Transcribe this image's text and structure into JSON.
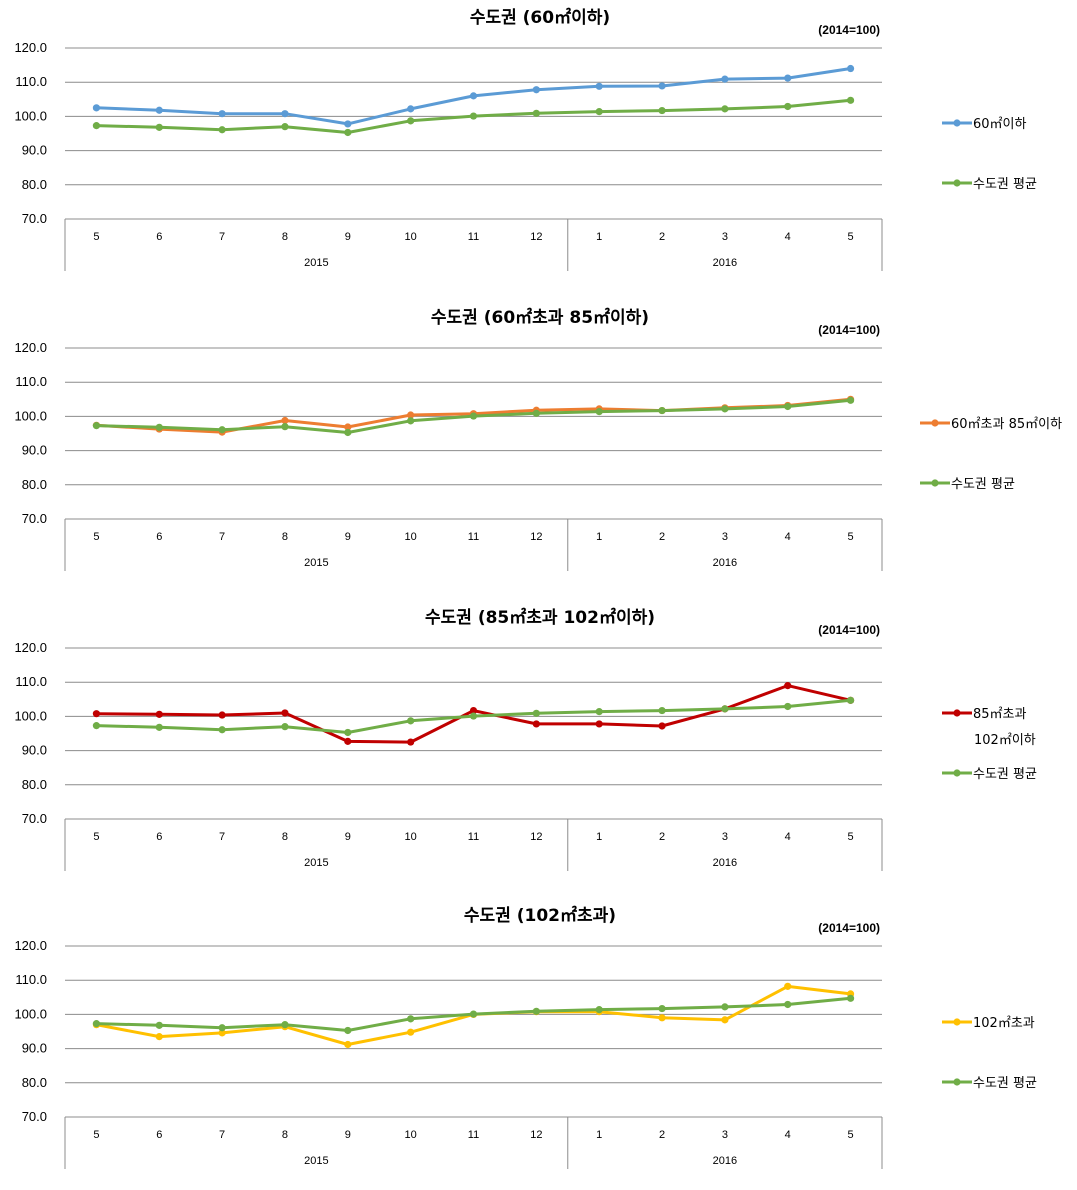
{
  "chart_data": [
    {
      "type": "line",
      "title": "수도권 (60㎡이하)",
      "base_note": "(2014=100)",
      "ylim": [
        70,
        120
      ],
      "yticks": [
        "120.0",
        "110.0",
        "100.0",
        "90.0",
        "80.0",
        "70.0"
      ],
      "categories": [
        "5",
        "6",
        "7",
        "8",
        "9",
        "10",
        "11",
        "12",
        "1",
        "2",
        "3",
        "4",
        "5"
      ],
      "year_groups": [
        {
          "label": "2015",
          "count": 8
        },
        {
          "label": "2016",
          "count": 5
        }
      ],
      "grid": true,
      "legend_position": "right",
      "series": [
        {
          "name": "60㎡이하",
          "color": "#5b9bd5",
          "values": [
            102.5,
            101.8,
            100.8,
            100.8,
            97.8,
            102.2,
            106.0,
            107.8,
            108.8,
            108.9,
            110.9,
            111.2,
            114.0
          ]
        },
        {
          "name": "수도권 평균",
          "color": "#70ad47",
          "values": [
            97.3,
            96.8,
            96.1,
            97.0,
            95.3,
            98.7,
            100.1,
            100.9,
            101.4,
            101.7,
            102.2,
            102.9,
            104.7
          ]
        }
      ]
    },
    {
      "type": "line",
      "title": "수도권 (60㎡초과 85㎡이하)",
      "base_note": "(2014=100)",
      "ylim": [
        70,
        120
      ],
      "yticks": [
        "120.0",
        "110.0",
        "100.0",
        "90.0",
        "80.0",
        "70.0"
      ],
      "categories": [
        "5",
        "6",
        "7",
        "8",
        "9",
        "10",
        "11",
        "12",
        "1",
        "2",
        "3",
        "4",
        "5"
      ],
      "year_groups": [
        {
          "label": "2015",
          "count": 8
        },
        {
          "label": "2016",
          "count": 5
        }
      ],
      "grid": true,
      "legend_position": "right",
      "series": [
        {
          "name": "60㎡초과 85㎡이하",
          "color": "#ed7d31",
          "values": [
            97.4,
            96.3,
            95.4,
            98.8,
            96.9,
            100.4,
            100.8,
            101.8,
            102.2,
            101.7,
            102.5,
            103.2,
            105.0
          ]
        },
        {
          "name": "수도권 평균",
          "color": "#70ad47",
          "values": [
            97.3,
            96.8,
            96.1,
            97.0,
            95.3,
            98.7,
            100.1,
            100.9,
            101.4,
            101.7,
            102.2,
            102.9,
            104.7
          ]
        }
      ]
    },
    {
      "type": "line",
      "title": "수도권 (85㎡초과 102㎡이하)",
      "base_note": "(2014=100)",
      "ylim": [
        70,
        120
      ],
      "yticks": [
        "120.0",
        "110.0",
        "100.0",
        "90.0",
        "80.0",
        "70.0"
      ],
      "categories": [
        "5",
        "6",
        "7",
        "8",
        "9",
        "10",
        "11",
        "12",
        "1",
        "2",
        "3",
        "4",
        "5"
      ],
      "year_groups": [
        {
          "label": "2015",
          "count": 8
        },
        {
          "label": "2016",
          "count": 5
        }
      ],
      "grid": true,
      "legend_position": "right",
      "series": [
        {
          "name": "85㎡초과 102㎡이하",
          "legend_lines": [
            "85㎡초과",
            "102㎡이하"
          ],
          "color": "#c00000",
          "values": [
            100.8,
            100.6,
            100.4,
            101.0,
            92.7,
            92.5,
            101.7,
            97.8,
            97.8,
            97.2,
            102.2,
            109.0,
            104.7
          ]
        },
        {
          "name": "수도권 평균",
          "color": "#70ad47",
          "values": [
            97.3,
            96.8,
            96.1,
            97.0,
            95.3,
            98.7,
            100.1,
            100.9,
            101.4,
            101.7,
            102.2,
            102.9,
            104.7
          ]
        }
      ]
    },
    {
      "type": "line",
      "title": "수도권 (102㎡초과)",
      "base_note": "(2014=100)",
      "ylim": [
        70,
        120
      ],
      "yticks": [
        "120.0",
        "110.0",
        "100.0",
        "90.0",
        "80.0",
        "70.0"
      ],
      "categories": [
        "5",
        "6",
        "7",
        "8",
        "9",
        "10",
        "11",
        "12",
        "1",
        "2",
        "3",
        "4",
        "5"
      ],
      "year_groups": [
        {
          "label": "2015",
          "count": 8
        },
        {
          "label": "2016",
          "count": 5
        }
      ],
      "grid": true,
      "legend_position": "right",
      "series": [
        {
          "name": "102㎡초과",
          "color": "#ffc000",
          "values": [
            97.0,
            93.5,
            94.6,
            96.4,
            91.2,
            94.8,
            100.0,
            100.8,
            100.8,
            99.0,
            98.4,
            108.2,
            106.0
          ]
        },
        {
          "name": "수도권 평균",
          "color": "#70ad47",
          "values": [
            97.3,
            96.8,
            96.1,
            97.0,
            95.3,
            98.7,
            100.1,
            100.9,
            101.4,
            101.7,
            102.2,
            102.9,
            104.7
          ]
        }
      ]
    }
  ]
}
